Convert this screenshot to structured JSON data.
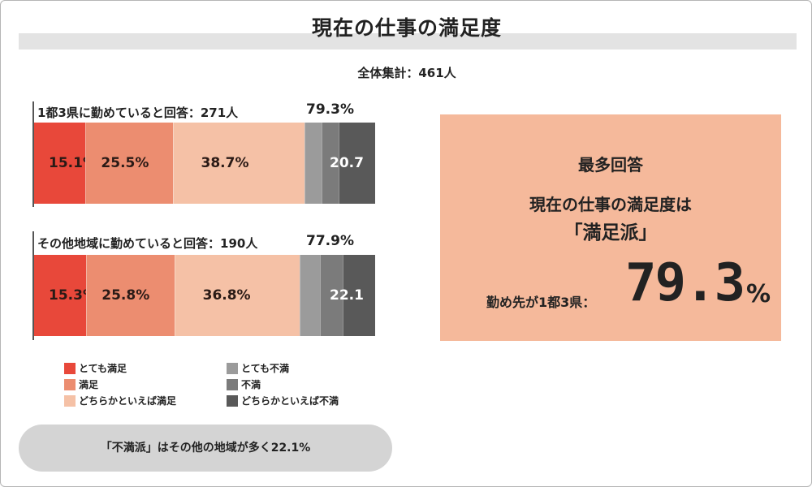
{
  "title": "現在の仕事の満足度",
  "total_label": "全体集計：461人",
  "colors": {
    "very_satisfied": "#e8483a",
    "satisfied": "#ec8d70",
    "somewhat_satisfied": "#f5c1a6",
    "very_dissatisfied": "#9b9b9b",
    "dissatisfied": "#7b7b7b",
    "somewhat_dissatisfied": "#595959",
    "callout_bg": "#f5b99b"
  },
  "chart_data": {
    "type": "bar",
    "orientation": "horizontal-stacked",
    "xlim": [
      0,
      100
    ],
    "groups": [
      {
        "label": "1都3県に勤めていると回答：271人",
        "satisfied_total": "79.3%",
        "segments": [
          {
            "name": "とても満足",
            "value": 15.1,
            "label": "15.1%"
          },
          {
            "name": "満足",
            "value": 25.5,
            "label": "25.5%"
          },
          {
            "name": "どちらかといえば満足",
            "value": 38.7,
            "label": "38.7%"
          },
          {
            "name": "とても不満",
            "value": 5.0,
            "label": ""
          },
          {
            "name": "不満",
            "value": 5.0,
            "label": ""
          },
          {
            "name": "どちらかといえば不満",
            "value": 10.7,
            "label": "20.7"
          }
        ]
      },
      {
        "label": "その他地域に勤めていると回答：190人",
        "satisfied_total": "77.9%",
        "segments": [
          {
            "name": "とても満足",
            "value": 15.3,
            "label": "15.3%"
          },
          {
            "name": "満足",
            "value": 25.8,
            "label": "25.8%"
          },
          {
            "name": "どちらかといえば満足",
            "value": 36.8,
            "label": "36.8%"
          },
          {
            "name": "とても不満",
            "value": 5.9,
            "label": ""
          },
          {
            "name": "不満",
            "value": 6.6,
            "label": ""
          },
          {
            "name": "どちらかといえば不満",
            "value": 9.6,
            "label": "22.1"
          }
        ]
      }
    ],
    "legend": [
      {
        "label": "とても満足",
        "color_key": "very_satisfied"
      },
      {
        "label": "満足",
        "color_key": "satisfied"
      },
      {
        "label": "どちらかといえば満足",
        "color_key": "somewhat_satisfied"
      },
      {
        "label": "とても不満",
        "color_key": "very_dissatisfied"
      },
      {
        "label": "不満",
        "color_key": "dissatisfied"
      },
      {
        "label": "どちらかといえば不満",
        "color_key": "somewhat_dissatisfied"
      }
    ],
    "legend_placement": "bottom-left"
  },
  "callout": {
    "heading": "最多回答",
    "line1": "現在の仕事の満足度は",
    "line2": "「満足派」",
    "prefix": "勤め先が1都3県：",
    "value": "79.3",
    "unit": "%"
  },
  "note": "「不満派」はその他の地域が多く22.1%"
}
